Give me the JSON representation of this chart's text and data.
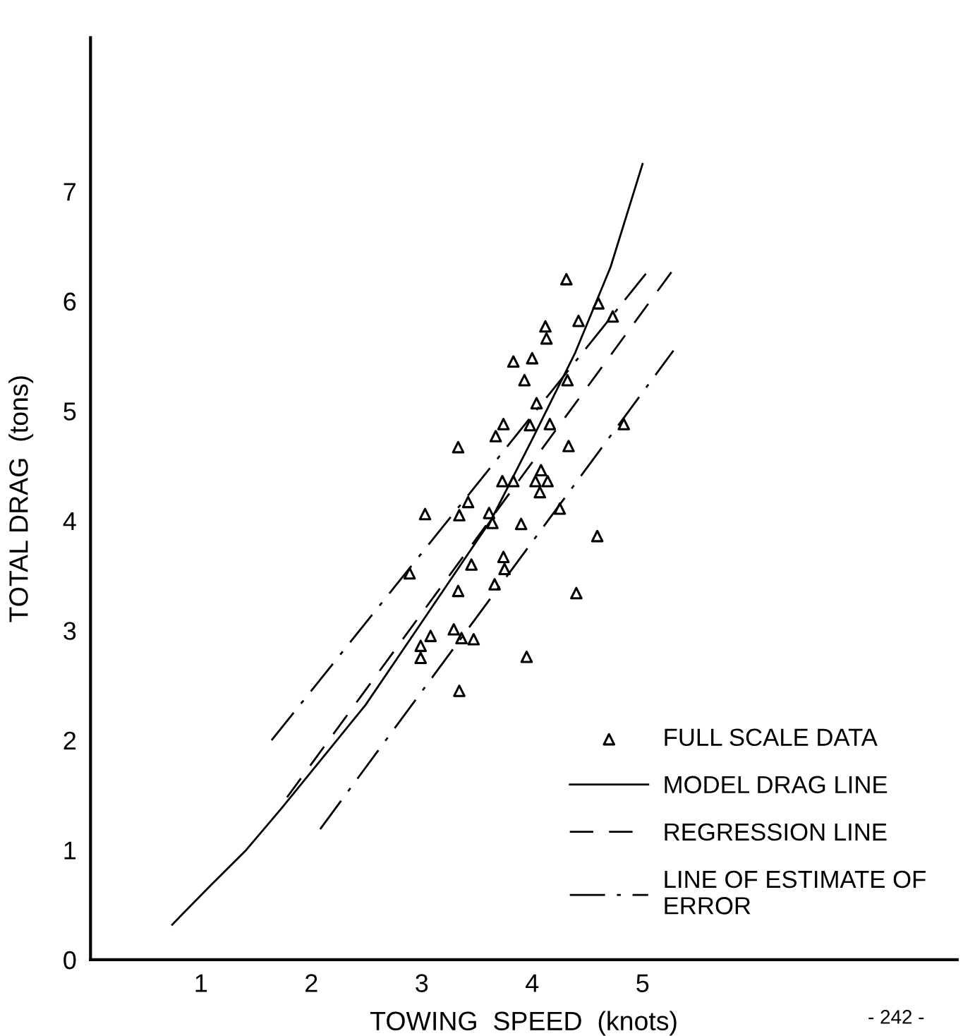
{
  "chart_data": {
    "type": "scatter",
    "xlabel": "TOWING  SPEED  (knots)",
    "ylabel": "TOTAL DRAG  (tons)",
    "xlim": [
      0,
      7.85
    ],
    "ylim": [
      0,
      8.4
    ],
    "xticks": [
      1,
      2,
      3,
      4,
      5
    ],
    "yticks": [
      0,
      1,
      2,
      3,
      4,
      5,
      6,
      7
    ],
    "grid": false,
    "legend": "bottom right",
    "annotations": [
      "- 242 -"
    ],
    "series": [
      {
        "name": "FULL SCALE DATA",
        "marker": "triangle",
        "color": "#000000",
        "x": [
          4.31,
          4.6,
          4.42,
          4.73,
          4.12,
          4.13,
          3.83,
          4.0,
          3.93,
          4.32,
          4.04,
          3.74,
          3.98,
          4.16,
          4.83,
          3.33,
          3.67,
          4.33,
          4.08,
          3.73,
          3.83,
          4.03,
          4.14,
          4.07,
          3.42,
          3.03,
          3.34,
          3.61,
          4.25,
          3.64,
          3.9,
          4.59,
          2.89,
          3.45,
          3.74,
          3.75,
          3.66,
          3.33,
          4.4,
          3.29,
          3.08,
          2.99,
          3.36,
          3.47,
          2.99,
          3.95,
          3.34
        ],
        "values": [
          6.2,
          5.98,
          5.82,
          5.86,
          5.77,
          5.66,
          5.45,
          5.48,
          5.28,
          5.28,
          5.07,
          4.88,
          4.87,
          4.88,
          4.88,
          4.67,
          4.77,
          4.68,
          4.46,
          4.36,
          4.36,
          4.36,
          4.36,
          4.26,
          4.17,
          4.06,
          4.05,
          4.07,
          4.11,
          3.98,
          3.97,
          3.86,
          3.52,
          3.6,
          3.67,
          3.56,
          3.42,
          3.36,
          3.34,
          3.01,
          2.95,
          2.86,
          2.93,
          2.92,
          2.75,
          2.76,
          2.45
        ]
      },
      {
        "name": "MODEL DRAG LINE",
        "type": "line",
        "line_style": "solid",
        "color": "#000000",
        "x": [
          0.74,
          1.09,
          1.41,
          1.73,
          2.49,
          2.99,
          3.63,
          4.01,
          4.39,
          4.71,
          5.0
        ],
        "values": [
          0.32,
          0.68,
          1.0,
          1.38,
          2.32,
          3.06,
          4.01,
          4.76,
          5.53,
          6.31,
          7.25
        ]
      },
      {
        "name": "REGRESSION LINE",
        "type": "line",
        "line_style": "dashed",
        "color": "#000000",
        "x": [
          1.78,
          5.28
        ],
        "values": [
          1.48,
          6.29
        ]
      },
      {
        "name": "LINE OF ESTIMATE OF ERROR",
        "type": "line",
        "line_style": "dashdot",
        "color": "#000000",
        "x": [
          1.64,
          5.03
        ],
        "values": [
          2.0,
          6.25
        ]
      },
      {
        "type": "line",
        "line_style": "dashdot",
        "color": "#000000",
        "x": [
          2.08,
          5.28
        ],
        "values": [
          1.19,
          5.55
        ]
      }
    ]
  }
}
